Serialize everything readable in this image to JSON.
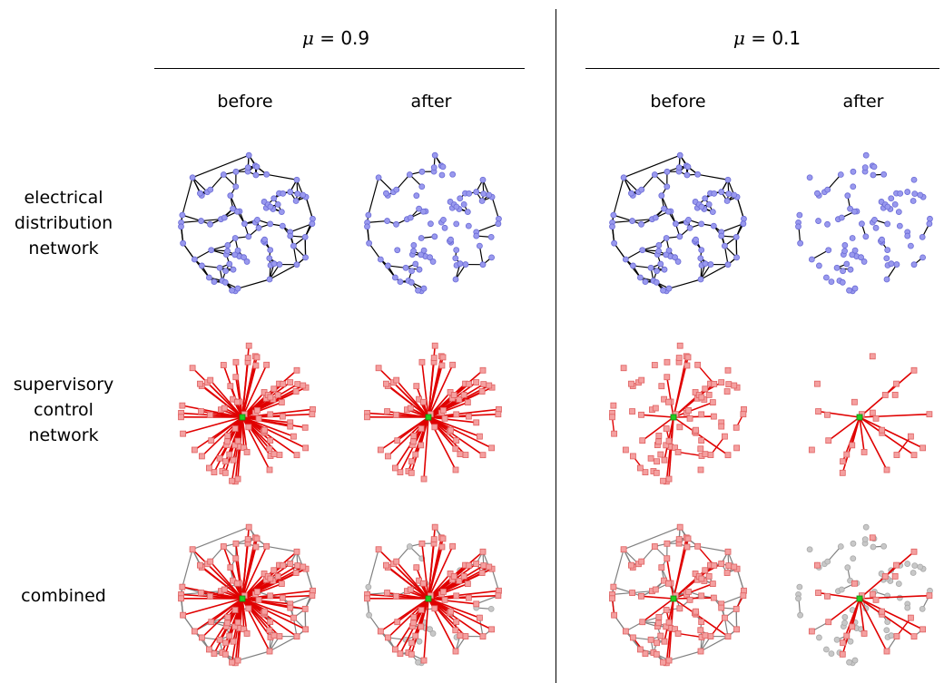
{
  "columns": [
    {
      "mu_symbol": "μ",
      "mu_value": "= 0.9",
      "before_label": "before",
      "after_label": "after"
    },
    {
      "mu_symbol": "μ",
      "mu_value": "= 0.1",
      "before_label": "before",
      "after_label": "after"
    }
  ],
  "rows": [
    {
      "label_lines": [
        "electrical",
        "distribution",
        "network"
      ]
    },
    {
      "label_lines": [
        "supervisory",
        "control",
        "network"
      ]
    },
    {
      "label_lines": [
        "combined"
      ]
    }
  ],
  "colors": {
    "power_node": "#9999ee",
    "power_node_stroke": "#6b6bd6",
    "power_edge": "#000000",
    "control_node": "#f4a0a0",
    "control_node_stroke": "#e06060",
    "control_edge": "#e00000",
    "hub_node": "#22cc22",
    "combined_power_node": "#c8c8c8",
    "combined_power_edge": "#808080"
  }
}
